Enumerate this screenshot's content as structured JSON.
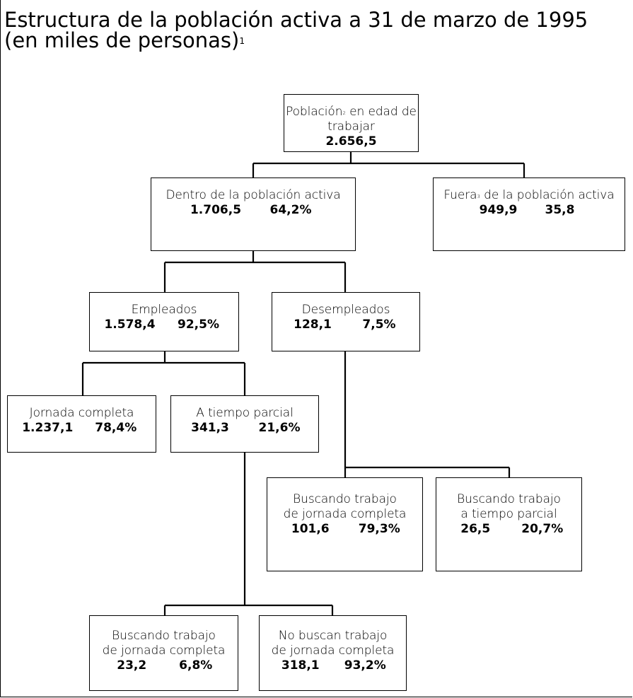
{
  "title": {
    "line1": "Estructura de la población activa a 31 de marzo de 1995",
    "line2": "(en miles de personas)",
    "line2_sup": "1"
  },
  "nodes": {
    "poblacion": {
      "label": "Población",
      "sup": "2",
      "label_rest": " en edad de trabajar",
      "value": "2.656,5"
    },
    "dentro": {
      "label": "Dentro de la población activa",
      "value": "1.706,5",
      "pct": "64,2%"
    },
    "fuera": {
      "label": "Fuera",
      "sup": "3",
      "label_rest": " de la población activa",
      "value": "949,9",
      "pct": "35,8"
    },
    "empleados": {
      "label": "Empleados",
      "value": "1.578,4",
      "pct": "92,5%"
    },
    "desempleados": {
      "label": "Desempleados",
      "value": "128,1",
      "pct": "7,5%"
    },
    "jornada_completa": {
      "label": "Jornada completa",
      "value": "1.237,1",
      "pct": "78,4%"
    },
    "tiempo_parcial": {
      "label": "A tiempo parcial",
      "value": "341,3",
      "pct": "21,6%"
    },
    "busc_jc": {
      "label1": "Buscando trabajo",
      "label2": "de jornada completa",
      "value": "101,6",
      "pct": "79,3%"
    },
    "busc_tp": {
      "label1": "Buscando trabajo",
      "label2": "a tiempo parcial",
      "value": "26,5",
      "pct": "20,7%"
    },
    "tp_busc_jc": {
      "label1": "Buscando trabajo",
      "label2": "de jornada completa",
      "value": "23,2",
      "pct": "6,8%"
    },
    "tp_nobusc_jc": {
      "label1": "No buscan trabajo",
      "label2": "de jornada completa",
      "value": "318,1",
      "pct": "93,2%"
    }
  }
}
